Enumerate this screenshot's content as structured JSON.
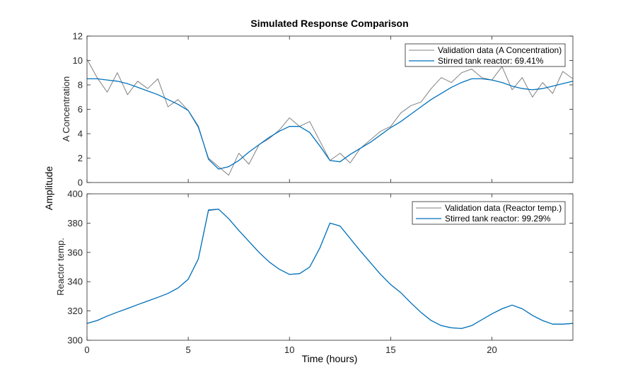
{
  "chart_data": {
    "type": "line",
    "title": "Simulated Response Comparison",
    "xlabel": "Time (hours)",
    "shared_ylabel": "Amplitude",
    "xlim": [
      0,
      24
    ],
    "xticks": [
      0,
      5,
      10,
      15,
      20
    ],
    "xtick_labels": [
      "0",
      "5",
      "10",
      "15",
      "20"
    ],
    "colors": {
      "validation": "#808080",
      "model": "#0072bd",
      "axis": "#262626"
    },
    "subplots": [
      {
        "ylabel": "A Concentration",
        "ylim": [
          0,
          12
        ],
        "yticks": [
          0,
          2,
          4,
          6,
          8,
          10,
          12
        ],
        "ytick_labels": [
          "0",
          "2",
          "4",
          "6",
          "8",
          "10",
          "12"
        ],
        "legend": {
          "location": "top-right",
          "entries": [
            "Validation data (A Concentration)",
            "Stirred tank reactor: 69.41%"
          ]
        },
        "series": [
          {
            "name": "Validation data (A Concentration)",
            "x": [
              0,
              0.5,
              1,
              1.5,
              2,
              2.5,
              3,
              3.5,
              4,
              4.5,
              5,
              5.5,
              6,
              6.5,
              7,
              7.5,
              8,
              8.5,
              9,
              9.5,
              10,
              10.5,
              11,
              11.5,
              12,
              12.5,
              13,
              13.5,
              14,
              14.5,
              15,
              15.5,
              16,
              16.5,
              17,
              17.5,
              18,
              18.5,
              19,
              19.5,
              20,
              20.5,
              21,
              21.5,
              22,
              22.5,
              23,
              23.5,
              24
            ],
            "values": [
              10.1,
              8.6,
              7.4,
              9.0,
              7.2,
              8.3,
              7.7,
              8.5,
              6.2,
              6.8,
              5.9,
              4.5,
              2.0,
              1.3,
              0.6,
              2.4,
              1.5,
              3.1,
              3.6,
              4.3,
              5.3,
              4.6,
              5.0,
              3.4,
              1.8,
              2.4,
              1.6,
              2.8,
              3.5,
              4.2,
              4.6,
              5.7,
              6.3,
              6.6,
              7.7,
              8.6,
              8.2,
              9.0,
              9.3,
              8.6,
              8.4,
              9.5,
              7.6,
              8.6,
              7.0,
              8.2,
              7.3,
              9.1,
              8.5
            ]
          },
          {
            "name": "Stirred tank reactor: 69.41%",
            "x": [
              0,
              0.5,
              1,
              1.5,
              2,
              2.5,
              3,
              3.5,
              4,
              4.5,
              5,
              5.5,
              6,
              6.5,
              7,
              7.5,
              8,
              8.5,
              9,
              9.5,
              10,
              10.5,
              11,
              11.5,
              12,
              12.5,
              13,
              13.5,
              14,
              14.5,
              15,
              15.5,
              16,
              16.5,
              17,
              17.5,
              18,
              18.5,
              19,
              19.5,
              20,
              20.5,
              21,
              21.5,
              22,
              22.5,
              23,
              23.5,
              24
            ],
            "values": [
              8.5,
              8.5,
              8.4,
              8.3,
              8.1,
              7.8,
              7.5,
              7.2,
              6.8,
              6.4,
              5.9,
              4.6,
              1.9,
              1.1,
              1.3,
              1.8,
              2.5,
              3.1,
              3.7,
              4.2,
              4.6,
              4.6,
              4.1,
              3.0,
              1.8,
              1.7,
              2.3,
              2.8,
              3.3,
              3.9,
              4.5,
              5.0,
              5.6,
              6.2,
              6.8,
              7.3,
              7.8,
              8.2,
              8.5,
              8.5,
              8.4,
              8.2,
              7.9,
              7.7,
              7.6,
              7.7,
              7.9,
              8.1,
              8.3
            ]
          }
        ]
      },
      {
        "ylabel": "Reactor temp.",
        "ylim": [
          300,
          400
        ],
        "yticks": [
          300,
          320,
          340,
          360,
          380,
          400
        ],
        "ytick_labels": [
          "300",
          "320",
          "340",
          "360",
          "380",
          "400"
        ],
        "legend": {
          "location": "top-right",
          "entries": [
            "Validation data (Reactor temp.)",
            "Stirred tank reactor: 99.29%"
          ]
        },
        "series": [
          {
            "name": "Validation data (Reactor temp.)",
            "x": [
              0,
              0.5,
              1,
              1.5,
              2,
              2.5,
              3,
              3.5,
              4,
              4.5,
              5,
              5.5,
              6,
              6.5,
              7,
              7.5,
              8,
              8.5,
              9,
              9.5,
              10,
              10.5,
              11,
              11.5,
              12,
              12.5,
              13,
              13.5,
              14,
              14.5,
              15,
              15.5,
              16,
              16.5,
              17,
              17.5,
              18,
              18.5,
              19,
              19.5,
              20,
              20.5,
              21,
              21.5,
              22,
              22.5,
              23,
              23.5,
              24
            ],
            "values": [
              311.5,
              313.5,
              316.5,
              319.2,
              321.7,
              324.3,
              326.8,
              329.3,
              332.0,
              335.7,
              341.7,
              355.5,
              388.5,
              389.5,
              383.0,
              375.0,
              367.5,
              360.0,
              353.5,
              348.5,
              345.0,
              345.5,
              350.0,
              363.0,
              380.0,
              378.0,
              369.5,
              361.0,
              353.0,
              345.0,
              338.0,
              332.5,
              325.5,
              319.0,
              313.5,
              310.0,
              308.5,
              308.0,
              310.0,
              314.0,
              318.0,
              321.5,
              324.0,
              321.5,
              317.0,
              313.5,
              311.0,
              311.0,
              311.5
            ]
          },
          {
            "name": "Stirred tank reactor: 99.29%",
            "x": [
              0,
              0.5,
              1,
              1.5,
              2,
              2.5,
              3,
              3.5,
              4,
              4.5,
              5,
              5.5,
              6,
              6.5,
              7,
              7.5,
              8,
              8.5,
              9,
              9.5,
              10,
              10.5,
              11,
              11.5,
              12,
              12.5,
              13,
              13.5,
              14,
              14.5,
              15,
              15.5,
              16,
              16.5,
              17,
              17.5,
              18,
              18.5,
              19,
              19.5,
              20,
              20.5,
              21,
              21.5,
              22,
              22.5,
              23,
              23.5,
              24
            ],
            "values": [
              311.5,
              313.5,
              316.5,
              319.2,
              321.7,
              324.3,
              326.8,
              329.3,
              332.0,
              335.7,
              341.7,
              355.5,
              389.0,
              389.5,
              383.0,
              375.0,
              367.5,
              360.0,
              353.5,
              348.5,
              345.0,
              345.5,
              350.0,
              363.0,
              380.0,
              378.0,
              369.5,
              361.0,
              353.0,
              345.0,
              338.0,
              332.5,
              325.5,
              319.0,
              313.5,
              310.0,
              308.5,
              308.0,
              310.0,
              314.0,
              318.0,
              321.5,
              324.0,
              321.5,
              317.0,
              313.5,
              311.0,
              311.0,
              311.5
            ]
          }
        ]
      }
    ]
  }
}
